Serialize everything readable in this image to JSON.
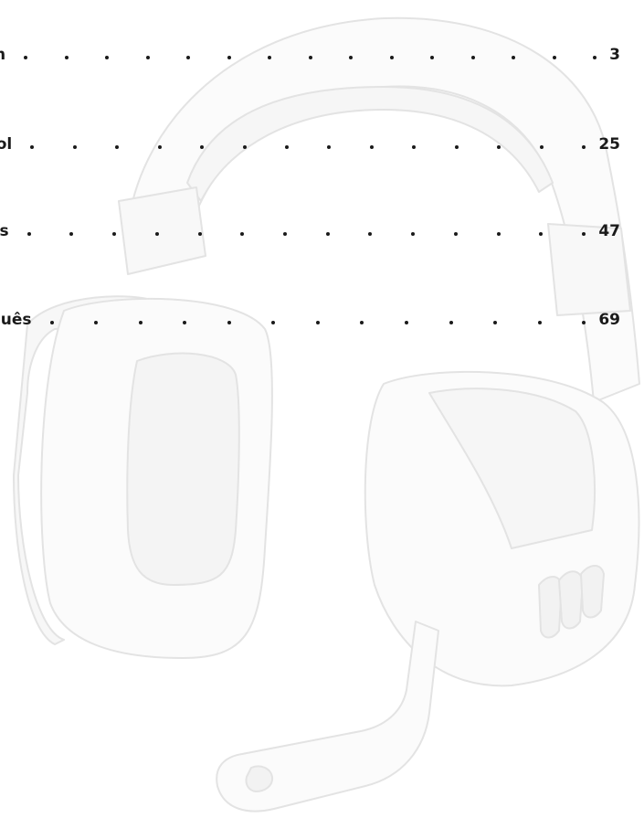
{
  "toc": {
    "entries": [
      {
        "label": "glish",
        "page": "3"
      },
      {
        "label": "pañol",
        "page": "25"
      },
      {
        "label": "nçais",
        "page": "47"
      },
      {
        "label": "rtuguês",
        "page": "69"
      }
    ]
  },
  "illustration": {
    "icon": "headset-illustration",
    "stroke_color": "#e6e6e6",
    "fill_color": "#fbfbfb"
  }
}
